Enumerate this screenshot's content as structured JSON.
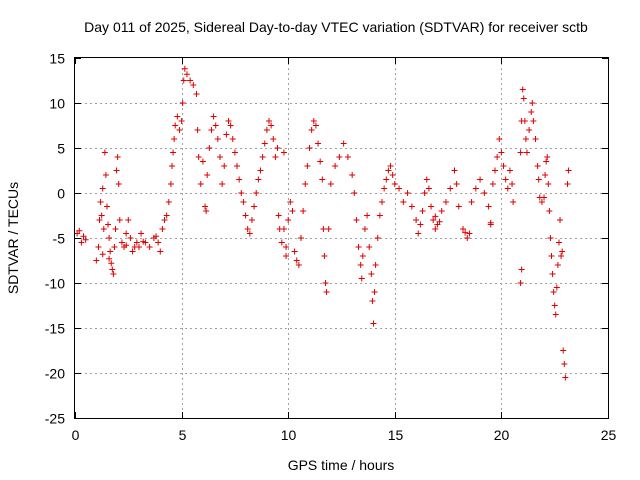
{
  "chart_data": {
    "type": "scatter",
    "title": "Day 011 of 2025, Sidereal Day-to-day VTEC variation (SDTVAR) for receiver sctb",
    "xlabel": "GPS time / hours",
    "ylabel": "SDTVAR / TECUs",
    "xlim": [
      0,
      25
    ],
    "ylim": [
      -25,
      15
    ],
    "xticks": [
      0,
      5,
      10,
      15,
      20,
      25
    ],
    "yticks": [
      -25,
      -20,
      -15,
      -10,
      -5,
      0,
      5,
      10,
      15
    ],
    "grid": true,
    "marker": "plus",
    "color": "#e00000",
    "series": [
      {
        "name": "SDTVAR",
        "points": [
          [
            0.1,
            -4.5
          ],
          [
            0.2,
            -4.2
          ],
          [
            0.3,
            -5.5
          ],
          [
            0.4,
            -4.8
          ],
          [
            0.5,
            -5.2
          ],
          [
            1.0,
            -7.5
          ],
          [
            1.1,
            -6.0
          ],
          [
            1.15,
            -3.0
          ],
          [
            1.2,
            -1.0
          ],
          [
            1.25,
            -2.5
          ],
          [
            1.3,
            0.5
          ],
          [
            1.35,
            -4.0
          ],
          [
            1.4,
            4.5
          ],
          [
            1.45,
            2.0
          ],
          [
            1.5,
            -1.5
          ],
          [
            1.55,
            -3.5
          ],
          [
            1.6,
            -5.0
          ],
          [
            1.65,
            -6.5
          ],
          [
            1.7,
            -7.8
          ],
          [
            1.75,
            -8.5
          ],
          [
            1.8,
            -9.0
          ],
          [
            1.85,
            -6.0
          ],
          [
            1.9,
            -4.0
          ],
          [
            1.95,
            2.5
          ],
          [
            2.0,
            4.0
          ],
          [
            2.05,
            1.0
          ],
          [
            2.1,
            -3.0
          ],
          [
            2.2,
            -5.5
          ],
          [
            2.3,
            -6.0
          ],
          [
            2.4,
            -4.5
          ],
          [
            2.5,
            -3.0
          ],
          [
            2.6,
            -5.0
          ],
          [
            2.7,
            -6.5
          ],
          [
            2.8,
            -6.0
          ],
          [
            2.9,
            -5.5
          ],
          [
            3.0,
            -6.0
          ],
          [
            3.1,
            -4.5
          ],
          [
            3.3,
            -5.5
          ],
          [
            3.5,
            -6.0
          ],
          [
            3.7,
            -5.0
          ],
          [
            3.9,
            -5.5
          ],
          [
            4.0,
            -6.5
          ],
          [
            4.1,
            -4.0
          ],
          [
            4.2,
            -3.0
          ],
          [
            4.3,
            -2.5
          ],
          [
            4.4,
            -1.0
          ],
          [
            4.5,
            1.0
          ],
          [
            4.55,
            3.0
          ],
          [
            4.6,
            4.5
          ],
          [
            4.65,
            6.0
          ],
          [
            4.7,
            7.5
          ],
          [
            4.8,
            8.5
          ],
          [
            4.9,
            7.0
          ],
          [
            5.0,
            8.0
          ],
          [
            5.05,
            10.0
          ],
          [
            5.1,
            12.5
          ],
          [
            5.15,
            13.8
          ],
          [
            5.25,
            13.2
          ],
          [
            5.4,
            12.5
          ],
          [
            5.55,
            12.0
          ],
          [
            5.7,
            11.0
          ],
          [
            5.75,
            7.0
          ],
          [
            5.8,
            4.0
          ],
          [
            5.9,
            1.0
          ],
          [
            6.0,
            3.5
          ],
          [
            6.1,
            -1.5
          ],
          [
            6.15,
            -2.0
          ],
          [
            6.2,
            2.0
          ],
          [
            6.3,
            5.0
          ],
          [
            6.4,
            7.0
          ],
          [
            6.5,
            8.5
          ],
          [
            6.6,
            7.5
          ],
          [
            6.7,
            6.0
          ],
          [
            6.8,
            4.0
          ],
          [
            6.9,
            1.0
          ],
          [
            7.0,
            3.0
          ],
          [
            7.1,
            6.5
          ],
          [
            7.2,
            8.0
          ],
          [
            7.3,
            7.5
          ],
          [
            7.4,
            6.0
          ],
          [
            7.5,
            4.5
          ],
          [
            7.6,
            3.0
          ],
          [
            7.7,
            1.5
          ],
          [
            7.8,
            0.0
          ],
          [
            7.9,
            -1.0
          ],
          [
            8.0,
            -2.5
          ],
          [
            8.1,
            -4.0
          ],
          [
            8.2,
            -4.5
          ],
          [
            8.3,
            -3.0
          ],
          [
            8.4,
            -1.5
          ],
          [
            8.5,
            0.0
          ],
          [
            8.6,
            1.5
          ],
          [
            8.7,
            2.5
          ],
          [
            8.8,
            4.0
          ],
          [
            8.9,
            5.5
          ],
          [
            9.0,
            7.0
          ],
          [
            9.1,
            8.0
          ],
          [
            9.2,
            7.5
          ],
          [
            9.3,
            6.0
          ],
          [
            9.4,
            4.0
          ],
          [
            9.5,
            5.0
          ],
          [
            9.55,
            -2.5
          ],
          [
            9.6,
            -4.0
          ],
          [
            9.7,
            -5.5
          ],
          [
            9.8,
            -4.0
          ],
          [
            9.9,
            -6.0
          ],
          [
            10.0,
            -3.0
          ],
          [
            10.1,
            -1.0
          ],
          [
            10.2,
            -2.0
          ],
          [
            10.3,
            -6.5
          ],
          [
            10.4,
            -7.5
          ],
          [
            10.5,
            -8.0
          ],
          [
            10.6,
            -5.0
          ],
          [
            10.7,
            -2.0
          ],
          [
            10.8,
            1.0
          ],
          [
            10.9,
            3.0
          ],
          [
            11.0,
            5.0
          ],
          [
            11.1,
            7.0
          ],
          [
            11.2,
            8.0
          ],
          [
            11.3,
            7.5
          ],
          [
            11.4,
            5.5
          ],
          [
            11.5,
            3.5
          ],
          [
            11.6,
            1.5
          ],
          [
            11.65,
            -4.0
          ],
          [
            11.7,
            -7.0
          ],
          [
            11.75,
            -10.0
          ],
          [
            11.8,
            -11.0
          ],
          [
            11.9,
            -4.0
          ],
          [
            12.0,
            1.0
          ],
          [
            12.2,
            3.0
          ],
          [
            12.4,
            4.0
          ],
          [
            12.6,
            5.5
          ],
          [
            12.8,
            4.0
          ],
          [
            13.0,
            2.0
          ],
          [
            13.1,
            0.0
          ],
          [
            13.2,
            -3.0
          ],
          [
            13.3,
            -6.0
          ],
          [
            13.4,
            -8.0
          ],
          [
            13.45,
            -9.5
          ],
          [
            13.5,
            -7.0
          ],
          [
            13.6,
            -4.0
          ],
          [
            13.7,
            -2.5
          ],
          [
            13.8,
            -6.0
          ],
          [
            13.9,
            -9.0
          ],
          [
            13.95,
            -12.0
          ],
          [
            14.0,
            -14.5
          ],
          [
            14.05,
            -11.0
          ],
          [
            14.1,
            -8.0
          ],
          [
            14.2,
            -5.0
          ],
          [
            14.3,
            -2.5
          ],
          [
            14.4,
            -1.0
          ],
          [
            14.5,
            0.5
          ],
          [
            14.6,
            1.5
          ],
          [
            14.7,
            2.5
          ],
          [
            14.8,
            3.0
          ],
          [
            14.9,
            2.0
          ],
          [
            15.0,
            1.0
          ],
          [
            15.2,
            0.5
          ],
          [
            15.4,
            -1.0
          ],
          [
            15.6,
            0.0
          ],
          [
            15.8,
            -1.5
          ],
          [
            16.0,
            -3.0
          ],
          [
            16.1,
            -4.5
          ],
          [
            16.2,
            -3.5
          ],
          [
            16.3,
            -2.0
          ],
          [
            16.4,
            0.0
          ],
          [
            16.5,
            1.5
          ],
          [
            16.6,
            0.5
          ],
          [
            16.7,
            -1.5
          ],
          [
            16.8,
            -3.0
          ],
          [
            16.9,
            -4.0
          ],
          [
            17.0,
            -3.5
          ],
          [
            17.2,
            -2.0
          ],
          [
            17.4,
            -1.0
          ],
          [
            17.6,
            0.5
          ],
          [
            17.8,
            2.5
          ],
          [
            17.9,
            1.0
          ],
          [
            18.0,
            -1.5
          ],
          [
            18.2,
            -4.0
          ],
          [
            18.4,
            -5.0
          ],
          [
            18.5,
            -4.5
          ],
          [
            18.6,
            -1.0
          ],
          [
            18.8,
            0.5
          ],
          [
            19.0,
            1.5
          ],
          [
            19.2,
            0.0
          ],
          [
            19.4,
            -1.5
          ],
          [
            19.5,
            -3.5
          ],
          [
            19.6,
            1.0
          ],
          [
            19.7,
            2.5
          ],
          [
            19.8,
            4.0
          ],
          [
            19.9,
            6.0
          ],
          [
            20.0,
            4.5
          ],
          [
            20.1,
            3.0
          ],
          [
            20.2,
            1.5
          ],
          [
            20.3,
            0.5
          ],
          [
            20.4,
            2.5
          ],
          [
            20.5,
            1.0
          ],
          [
            20.55,
            -1.0
          ],
          [
            20.9,
            4.5
          ],
          [
            20.95,
            8.0
          ],
          [
            21.0,
            11.5
          ],
          [
            21.05,
            10.5
          ],
          [
            21.1,
            8.0
          ],
          [
            21.15,
            6.0
          ],
          [
            21.2,
            4.5
          ],
          [
            21.3,
            7.0
          ],
          [
            21.4,
            9.0
          ],
          [
            21.45,
            10.0
          ],
          [
            21.5,
            8.0
          ],
          [
            21.6,
            6.0
          ],
          [
            21.7,
            3.0
          ],
          [
            21.75,
            1.5
          ],
          [
            21.8,
            -0.5
          ],
          [
            21.9,
            -1.0
          ],
          [
            22.0,
            -0.5
          ],
          [
            22.05,
            2.0
          ],
          [
            22.1,
            3.5
          ],
          [
            22.15,
            4.0
          ],
          [
            22.2,
            1.0
          ],
          [
            22.25,
            -2.0
          ],
          [
            22.3,
            -5.0
          ],
          [
            22.35,
            -7.0
          ],
          [
            22.4,
            -9.0
          ],
          [
            22.45,
            -11.0
          ],
          [
            22.5,
            -12.5
          ],
          [
            22.55,
            -13.5
          ],
          [
            22.6,
            -10.5
          ],
          [
            22.65,
            -8.0
          ],
          [
            22.7,
            -5.5
          ],
          [
            22.75,
            -3.0
          ],
          [
            22.8,
            -7.0
          ],
          [
            22.85,
            -6.5
          ],
          [
            22.9,
            -17.5
          ],
          [
            22.95,
            -19.0
          ],
          [
            23.0,
            -20.5
          ],
          [
            23.1,
            1.0
          ],
          [
            23.15,
            2.5
          ],
          [
            20.9,
            -10.0
          ],
          [
            20.95,
            -8.5
          ],
          [
            19.5,
            -3.3
          ],
          [
            18.3,
            -4.4
          ],
          [
            17.1,
            -3.2
          ],
          [
            16.9,
            -2.6
          ],
          [
            9.8,
            4.5
          ],
          [
            9.9,
            -7.0
          ],
          [
            1.3,
            -6.8
          ],
          [
            1.6,
            -7.3
          ],
          [
            2.4,
            -5.8
          ],
          [
            3.2,
            -5.4
          ],
          [
            3.8,
            -4.8
          ]
        ]
      }
    ]
  }
}
